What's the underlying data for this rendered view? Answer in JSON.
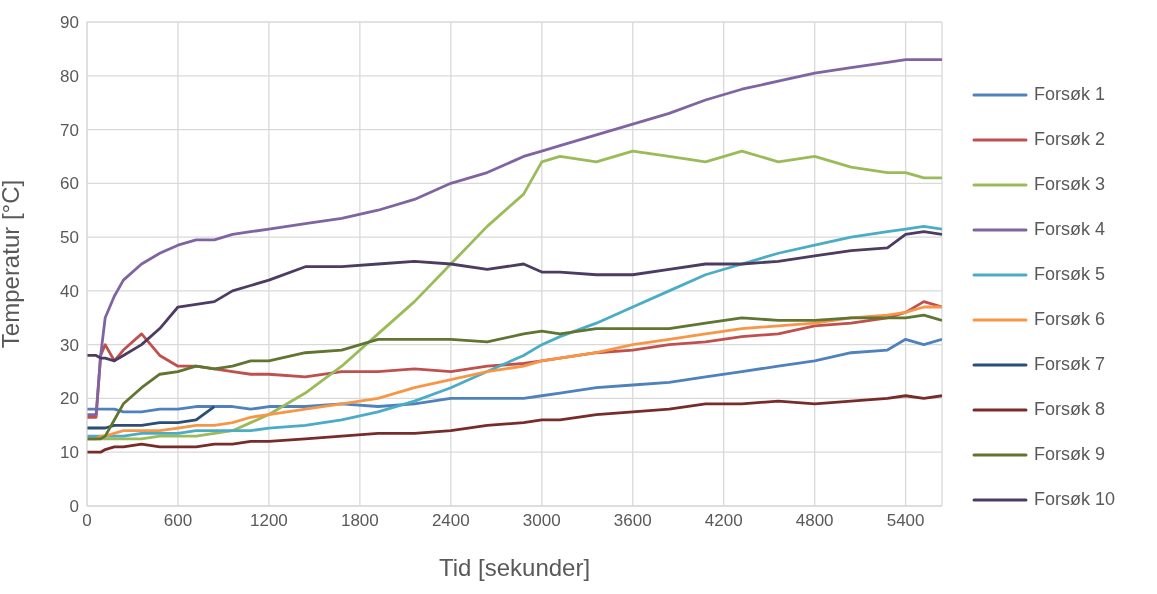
{
  "chart_data": {
    "type": "line",
    "xlabel": "Tid [sekunder]",
    "ylabel": "Temperatur [°C]",
    "x": [
      0,
      60,
      90,
      120,
      180,
      240,
      360,
      480,
      600,
      720,
      840,
      960,
      1080,
      1200,
      1440,
      1680,
      1920,
      2160,
      2400,
      2640,
      2880,
      3000,
      3120,
      3360,
      3600,
      3840,
      4080,
      4320,
      4560,
      4800,
      5040,
      5280,
      5400,
      5520,
      5640
    ],
    "series": [
      {
        "name": "Forsøk 1",
        "color": "#4f81bd",
        "values": [
          18,
          18,
          18,
          18,
          18,
          17.5,
          17.5,
          18,
          18,
          18.5,
          18.5,
          18.5,
          18,
          18.5,
          18.5,
          19,
          18.5,
          19,
          20,
          20,
          20,
          20.5,
          21,
          22,
          22.5,
          23,
          24,
          25,
          26,
          27,
          28.5,
          29,
          31,
          30,
          31
        ]
      },
      {
        "name": "Forsøk 2",
        "color": "#c0504d",
        "values": [
          16.5,
          16.5,
          28,
          30,
          27,
          29,
          32,
          28,
          26,
          26,
          25.5,
          25,
          24.5,
          24.5,
          24,
          25,
          25,
          25.5,
          25,
          26,
          26.5,
          27,
          27.5,
          28.5,
          29,
          30,
          30.5,
          31.5,
          32,
          33.5,
          34,
          35,
          36,
          38,
          37
        ]
      },
      {
        "name": "Forsøk 3",
        "color": "#9bbb59",
        "values": [
          12.5,
          12.5,
          12.5,
          12.5,
          12.5,
          12.5,
          12.5,
          13,
          13,
          13,
          13.5,
          14,
          15.5,
          17,
          21,
          26,
          32,
          38,
          45,
          52,
          58,
          64,
          65,
          64,
          66,
          65,
          64,
          66,
          64,
          65,
          63,
          62,
          62,
          61,
          61
        ]
      },
      {
        "name": "Forsøk 4",
        "color": "#8064a2",
        "values": [
          17,
          17,
          28,
          35,
          39,
          42,
          45,
          47,
          48.5,
          49.5,
          49.5,
          50.5,
          51,
          51.5,
          52.5,
          53.5,
          55,
          57,
          60,
          62,
          65,
          66,
          67,
          69,
          71,
          73,
          75.5,
          77.5,
          79,
          80.5,
          81.5,
          82.5,
          83,
          83,
          83
        ]
      },
      {
        "name": "Forsøk 5",
        "color": "#4bacc6",
        "values": [
          13,
          13,
          13,
          13,
          13,
          13,
          13.5,
          13.5,
          13.5,
          14,
          14,
          14,
          14,
          14.5,
          15,
          16,
          17.5,
          19.5,
          22,
          25,
          28,
          30,
          31.5,
          34,
          37,
          40,
          43,
          45,
          47,
          48.5,
          50,
          51,
          51.5,
          52,
          51.5
        ]
      },
      {
        "name": "Forsøk 6",
        "color": "#f79646",
        "values": [
          12.5,
          12.5,
          13,
          13,
          13.5,
          14,
          14,
          14,
          14.5,
          15,
          15,
          15.5,
          16.5,
          17,
          18,
          19,
          20,
          22,
          23.5,
          25,
          26,
          27,
          27.5,
          28.5,
          30,
          31,
          32,
          33,
          33.5,
          34,
          35,
          35.5,
          36,
          37,
          37
        ]
      },
      {
        "name": "Forsøk 7",
        "color": "#2c4d75",
        "values": [
          14.5,
          14.5,
          14.5,
          14.5,
          15,
          15,
          15,
          15.5,
          15.5,
          16,
          18.5,
          null,
          null,
          null,
          null,
          null,
          null,
          null,
          null,
          null,
          null,
          null,
          null,
          null,
          null,
          null,
          null,
          null,
          null,
          null,
          null,
          null,
          null,
          null,
          null
        ]
      },
      {
        "name": "Forsøk 8",
        "color": "#772c2a",
        "values": [
          10,
          10,
          10,
          10.5,
          11,
          11,
          11.5,
          11,
          11,
          11,
          11.5,
          11.5,
          12,
          12,
          12.5,
          13,
          13.5,
          13.5,
          14,
          15,
          15.5,
          16,
          16,
          17,
          17.5,
          18,
          19,
          19,
          19.5,
          19,
          19.5,
          20,
          20.5,
          20,
          20.5
        ]
      },
      {
        "name": "Forsøk 9",
        "color": "#5f7530",
        "values": [
          12.5,
          12.5,
          12.5,
          13,
          16,
          19,
          22,
          24.5,
          25,
          26,
          25.5,
          26,
          27,
          27,
          28.5,
          29,
          31,
          31,
          31,
          30.5,
          32,
          32.5,
          32,
          33,
          33,
          33,
          34,
          35,
          34.5,
          34.5,
          35,
          35,
          35,
          35.5,
          34.5
        ]
      },
      {
        "name": "Forsøk 10",
        "color": "#4d3b62",
        "values": [
          28,
          28,
          27.5,
          27.5,
          27,
          28,
          30,
          33,
          37,
          37.5,
          38,
          40,
          41,
          42,
          44.5,
          44.5,
          45,
          45.5,
          45,
          44,
          45,
          43.5,
          43.5,
          43,
          43,
          44,
          45,
          45,
          45.5,
          46.5,
          47.5,
          48,
          50.5,
          51,
          50.5
        ]
      }
    ],
    "xlim": [
      0,
      5640
    ],
    "xticks": [
      0,
      600,
      1200,
      1800,
      2400,
      3000,
      3600,
      4200,
      4800,
      5400
    ],
    "ylim": [
      0,
      90
    ],
    "yticks": [
      0,
      10,
      20,
      30,
      40,
      50,
      60,
      70,
      80,
      90
    ],
    "grid": true,
    "legend": "right",
    "marker": "none",
    "line_style": "solid"
  }
}
